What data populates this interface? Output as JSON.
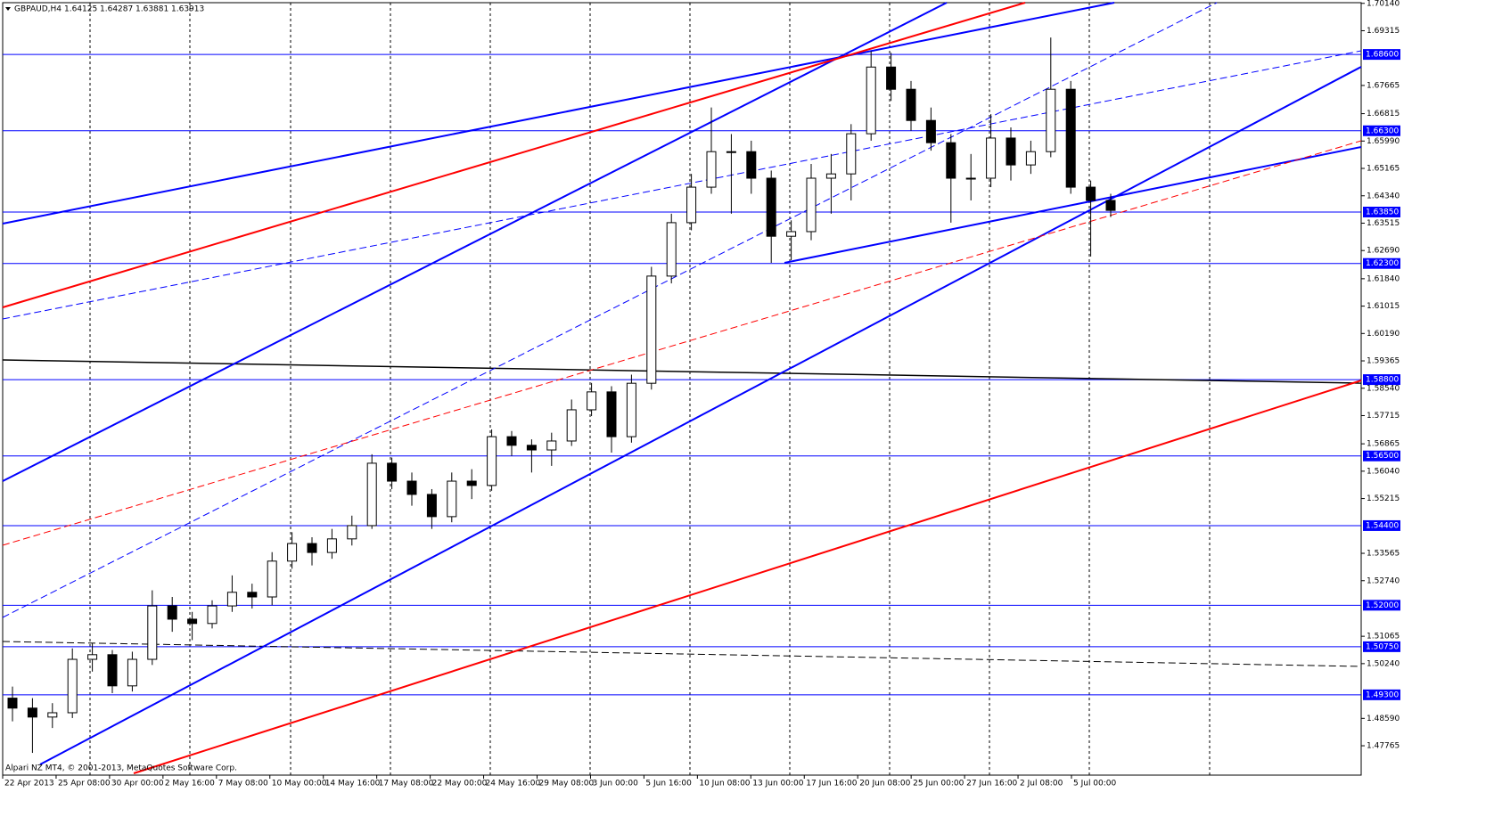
{
  "chart_data": {
    "type": "candlestick",
    "symbol": "GBPAUD,H4",
    "quote": [
      1.64125,
      1.64287,
      1.63881,
      1.63913
    ],
    "footer": "Alpari NZ MT4, © 2001-2013, MetaQuotes Software Corp.",
    "x_labels": [
      "22 Apr 2013",
      "25 Apr 08:00",
      "30 Apr 00:00",
      "2 May 16:00",
      "7 May 08:00",
      "10 May 00:00",
      "14 May 16:00",
      "17 May 08:00",
      "22 May 00:00",
      "24 May 16:00",
      "29 May 08:00",
      "3 Jun 00:00",
      "5 Jun 16:00",
      "10 Jun 08:00",
      "13 Jun 00:00",
      "17 Jun 16:00",
      "20 Jun 08:00",
      "25 Jun 00:00",
      "27 Jun 16:00",
      "2 Jul 08:00",
      "5 Jul 00:00"
    ],
    "open": [
      1.492,
      1.489,
      1.4863,
      1.4876,
      1.5037,
      1.5051,
      1.4957,
      1.5037,
      1.5198,
      1.5158,
      1.5145,
      1.5198,
      1.5239,
      1.5225,
      1.5333,
      1.5386,
      1.5359,
      1.54,
      1.544,
      1.5628,
      1.5574,
      1.5534,
      1.5467,
      1.5574,
      1.5561,
      1.5708,
      1.5682,
      1.5668,
      1.5695,
      1.5789,
      1.5843,
      1.5708,
      1.5869,
      1.6192,
      1.6353,
      1.646,
      1.6567,
      1.6567,
      1.6487,
      1.6312,
      1.6326,
      1.6487,
      1.65,
      1.6621,
      1.6822,
      1.6755,
      1.6661,
      1.6594,
      1.6487,
      1.6487,
      1.6608,
      1.6527,
      1.6567,
      1.6755,
      1.646,
      1.642
    ],
    "high": [
      1.4955,
      1.492,
      1.4905,
      1.507,
      1.5085,
      1.5065,
      1.506,
      1.5245,
      1.5225,
      1.518,
      1.5215,
      1.529,
      1.5265,
      1.536,
      1.542,
      1.5405,
      1.543,
      1.547,
      1.5655,
      1.5645,
      1.56,
      1.555,
      1.56,
      1.561,
      1.573,
      1.5725,
      1.57,
      1.572,
      1.582,
      1.587,
      1.586,
      1.5895,
      1.622,
      1.638,
      1.65,
      1.67,
      1.662,
      1.66,
      1.651,
      1.636,
      1.653,
      1.656,
      1.665,
      1.687,
      1.6865,
      1.678,
      1.67,
      1.662,
      1.656,
      1.668,
      1.664,
      1.66,
      1.6911,
      1.678,
      1.648,
      1.644
    ],
    "low": [
      1.485,
      1.4755,
      1.483,
      1.486,
      1.5,
      1.4935,
      1.494,
      1.502,
      1.512,
      1.5095,
      1.513,
      1.518,
      1.519,
      1.52,
      1.531,
      1.532,
      1.534,
      1.538,
      1.543,
      1.555,
      1.55,
      1.543,
      1.545,
      1.552,
      1.5545,
      1.565,
      1.56,
      1.562,
      1.568,
      1.577,
      1.566,
      1.569,
      1.585,
      1.617,
      1.633,
      1.644,
      1.638,
      1.644,
      1.6232,
      1.624,
      1.63,
      1.638,
      1.642,
      1.66,
      1.672,
      1.663,
      1.657,
      1.6353,
      1.642,
      1.646,
      1.648,
      1.65,
      1.655,
      1.644,
      1.6251,
      1.637
    ],
    "close": [
      1.489,
      1.4863,
      1.4876,
      1.5037,
      1.5051,
      1.4957,
      1.5037,
      1.5198,
      1.5158,
      1.5145,
      1.5198,
      1.5239,
      1.5225,
      1.5333,
      1.5386,
      1.5359,
      1.54,
      1.544,
      1.5628,
      1.5574,
      1.5534,
      1.5467,
      1.5574,
      1.5561,
      1.5708,
      1.5682,
      1.5668,
      1.5695,
      1.5789,
      1.5843,
      1.5708,
      1.5869,
      1.6192,
      1.6353,
      1.646,
      1.6567,
      1.6567,
      1.6487,
      1.6312,
      1.6326,
      1.6487,
      1.65,
      1.6621,
      1.6822,
      1.6755,
      1.6661,
      1.6594,
      1.6487,
      1.6487,
      1.6608,
      1.6527,
      1.6567,
      1.6755,
      1.646,
      1.642,
      1.639
    ],
    "ylim": [
      1.4688,
      1.7016
    ],
    "yticks": [
      {
        "value": 1.7014,
        "label": "1.70140"
      },
      1.69315,
      1.67665,
      1.66815,
      {
        "value": 1.6599,
        "label": "1.65990"
      },
      1.65165,
      {
        "value": 1.6434,
        "label": "1.64340"
      },
      1.63515,
      {
        "value": 1.6269,
        "label": "1.62690"
      },
      {
        "value": 1.6184,
        "label": "1.61840"
      },
      1.61015,
      {
        "value": 1.6019,
        "label": "1.60190"
      },
      1.59365,
      {
        "value": 1.5854,
        "label": "1.58540"
      },
      1.57715,
      1.56865,
      {
        "value": 1.5604,
        "label": "1.56040"
      },
      1.55215,
      1.53565,
      {
        "value": 1.5274,
        "label": "1.52740"
      },
      1.51065,
      {
        "value": 1.5024,
        "label": "1.50240"
      },
      {
        "value": 1.4859,
        "label": "1.48590"
      },
      1.47765
    ],
    "levels": [
      {
        "value": 1.686,
        "label": "1.68600"
      },
      {
        "value": 1.663,
        "label": "1.66300"
      },
      {
        "value": 1.6385,
        "label": "1.63850"
      },
      {
        "value": 1.623,
        "label": "1.62300"
      },
      {
        "value": 1.588,
        "label": "1.58800"
      },
      {
        "value": 1.565,
        "label": "1.56500"
      },
      {
        "value": 1.544,
        "label": "1.54400"
      },
      {
        "value": 1.52,
        "label": "1.52000"
      },
      {
        "value": 1.5075,
        "label": "1.50750"
      },
      {
        "value": 1.493,
        "label": "1.49300"
      }
    ],
    "level_color": "#0000ff",
    "up_color": "#ffffff",
    "down_color": "#000000"
  }
}
